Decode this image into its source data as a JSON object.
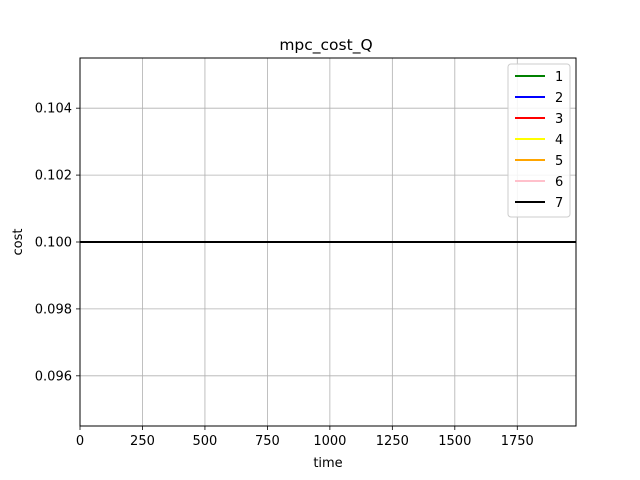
{
  "chart_data": {
    "type": "line",
    "title": "mpc_cost_Q",
    "xlabel": "time",
    "ylabel": "cost",
    "xlim": [
      0,
      1985
    ],
    "ylim": [
      0.0945,
      0.1055
    ],
    "xticks": [
      0,
      250,
      500,
      750,
      1000,
      1250,
      1500,
      1750
    ],
    "yticks": [
      0.096,
      0.098,
      0.1,
      0.102,
      0.104
    ],
    "ytick_labels": [
      "0.096",
      "0.098",
      "0.100",
      "0.102",
      "0.104"
    ],
    "grid": true,
    "legend_position": "top-right",
    "series": [
      {
        "name": "1",
        "color": "#008000",
        "x": [
          0,
          1985
        ],
        "y": [
          0.1,
          0.1
        ]
      },
      {
        "name": "2",
        "color": "#0000ff",
        "x": [
          0,
          1985
        ],
        "y": [
          0.1,
          0.1
        ]
      },
      {
        "name": "3",
        "color": "#ff0000",
        "x": [
          0,
          1985
        ],
        "y": [
          0.1,
          0.1
        ]
      },
      {
        "name": "4",
        "color": "#ffff00",
        "x": [
          0,
          1985
        ],
        "y": [
          0.1,
          0.1
        ]
      },
      {
        "name": "5",
        "color": "#ffa500",
        "x": [
          0,
          1985
        ],
        "y": [
          0.1,
          0.1
        ]
      },
      {
        "name": "6",
        "color": "#ffc0cb",
        "x": [
          0,
          1985
        ],
        "y": [
          0.1,
          0.1
        ]
      },
      {
        "name": "7",
        "color": "#000000",
        "x": [
          0,
          1985
        ],
        "y": [
          0.1,
          0.1
        ]
      }
    ]
  }
}
